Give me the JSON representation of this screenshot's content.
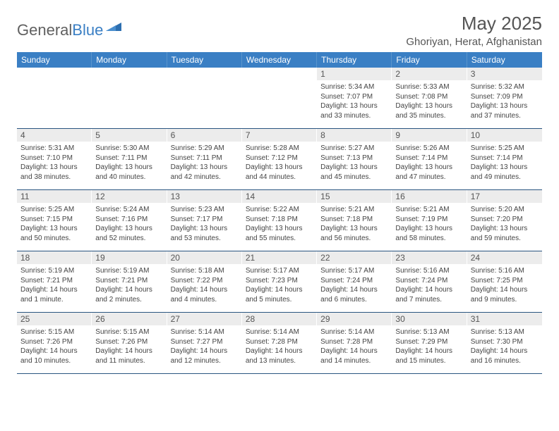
{
  "logo": {
    "text1": "General",
    "text2": "Blue"
  },
  "title": "May 2025",
  "location": "Ghoriyan, Herat, Afghanistan",
  "weekdays": [
    "Sunday",
    "Monday",
    "Tuesday",
    "Wednesday",
    "Thursday",
    "Friday",
    "Saturday"
  ],
  "colors": {
    "header_bg": "#3a7fc4",
    "header_text": "#ffffff",
    "daynum_bg": "#ececec",
    "row_border": "#2a5580",
    "text": "#444444",
    "title_text": "#555555"
  },
  "weeks": [
    [
      {
        "n": "",
        "sr": "",
        "ss": "",
        "dl": ""
      },
      {
        "n": "",
        "sr": "",
        "ss": "",
        "dl": ""
      },
      {
        "n": "",
        "sr": "",
        "ss": "",
        "dl": ""
      },
      {
        "n": "",
        "sr": "",
        "ss": "",
        "dl": ""
      },
      {
        "n": "1",
        "sr": "Sunrise: 5:34 AM",
        "ss": "Sunset: 7:07 PM",
        "dl": "Daylight: 13 hours and 33 minutes."
      },
      {
        "n": "2",
        "sr": "Sunrise: 5:33 AM",
        "ss": "Sunset: 7:08 PM",
        "dl": "Daylight: 13 hours and 35 minutes."
      },
      {
        "n": "3",
        "sr": "Sunrise: 5:32 AM",
        "ss": "Sunset: 7:09 PM",
        "dl": "Daylight: 13 hours and 37 minutes."
      }
    ],
    [
      {
        "n": "4",
        "sr": "Sunrise: 5:31 AM",
        "ss": "Sunset: 7:10 PM",
        "dl": "Daylight: 13 hours and 38 minutes."
      },
      {
        "n": "5",
        "sr": "Sunrise: 5:30 AM",
        "ss": "Sunset: 7:11 PM",
        "dl": "Daylight: 13 hours and 40 minutes."
      },
      {
        "n": "6",
        "sr": "Sunrise: 5:29 AM",
        "ss": "Sunset: 7:11 PM",
        "dl": "Daylight: 13 hours and 42 minutes."
      },
      {
        "n": "7",
        "sr": "Sunrise: 5:28 AM",
        "ss": "Sunset: 7:12 PM",
        "dl": "Daylight: 13 hours and 44 minutes."
      },
      {
        "n": "8",
        "sr": "Sunrise: 5:27 AM",
        "ss": "Sunset: 7:13 PM",
        "dl": "Daylight: 13 hours and 45 minutes."
      },
      {
        "n": "9",
        "sr": "Sunrise: 5:26 AM",
        "ss": "Sunset: 7:14 PM",
        "dl": "Daylight: 13 hours and 47 minutes."
      },
      {
        "n": "10",
        "sr": "Sunrise: 5:25 AM",
        "ss": "Sunset: 7:14 PM",
        "dl": "Daylight: 13 hours and 49 minutes."
      }
    ],
    [
      {
        "n": "11",
        "sr": "Sunrise: 5:25 AM",
        "ss": "Sunset: 7:15 PM",
        "dl": "Daylight: 13 hours and 50 minutes."
      },
      {
        "n": "12",
        "sr": "Sunrise: 5:24 AM",
        "ss": "Sunset: 7:16 PM",
        "dl": "Daylight: 13 hours and 52 minutes."
      },
      {
        "n": "13",
        "sr": "Sunrise: 5:23 AM",
        "ss": "Sunset: 7:17 PM",
        "dl": "Daylight: 13 hours and 53 minutes."
      },
      {
        "n": "14",
        "sr": "Sunrise: 5:22 AM",
        "ss": "Sunset: 7:18 PM",
        "dl": "Daylight: 13 hours and 55 minutes."
      },
      {
        "n": "15",
        "sr": "Sunrise: 5:21 AM",
        "ss": "Sunset: 7:18 PM",
        "dl": "Daylight: 13 hours and 56 minutes."
      },
      {
        "n": "16",
        "sr": "Sunrise: 5:21 AM",
        "ss": "Sunset: 7:19 PM",
        "dl": "Daylight: 13 hours and 58 minutes."
      },
      {
        "n": "17",
        "sr": "Sunrise: 5:20 AM",
        "ss": "Sunset: 7:20 PM",
        "dl": "Daylight: 13 hours and 59 minutes."
      }
    ],
    [
      {
        "n": "18",
        "sr": "Sunrise: 5:19 AM",
        "ss": "Sunset: 7:21 PM",
        "dl": "Daylight: 14 hours and 1 minute."
      },
      {
        "n": "19",
        "sr": "Sunrise: 5:19 AM",
        "ss": "Sunset: 7:21 PM",
        "dl": "Daylight: 14 hours and 2 minutes."
      },
      {
        "n": "20",
        "sr": "Sunrise: 5:18 AM",
        "ss": "Sunset: 7:22 PM",
        "dl": "Daylight: 14 hours and 4 minutes."
      },
      {
        "n": "21",
        "sr": "Sunrise: 5:17 AM",
        "ss": "Sunset: 7:23 PM",
        "dl": "Daylight: 14 hours and 5 minutes."
      },
      {
        "n": "22",
        "sr": "Sunrise: 5:17 AM",
        "ss": "Sunset: 7:24 PM",
        "dl": "Daylight: 14 hours and 6 minutes."
      },
      {
        "n": "23",
        "sr": "Sunrise: 5:16 AM",
        "ss": "Sunset: 7:24 PM",
        "dl": "Daylight: 14 hours and 7 minutes."
      },
      {
        "n": "24",
        "sr": "Sunrise: 5:16 AM",
        "ss": "Sunset: 7:25 PM",
        "dl": "Daylight: 14 hours and 9 minutes."
      }
    ],
    [
      {
        "n": "25",
        "sr": "Sunrise: 5:15 AM",
        "ss": "Sunset: 7:26 PM",
        "dl": "Daylight: 14 hours and 10 minutes."
      },
      {
        "n": "26",
        "sr": "Sunrise: 5:15 AM",
        "ss": "Sunset: 7:26 PM",
        "dl": "Daylight: 14 hours and 11 minutes."
      },
      {
        "n": "27",
        "sr": "Sunrise: 5:14 AM",
        "ss": "Sunset: 7:27 PM",
        "dl": "Daylight: 14 hours and 12 minutes."
      },
      {
        "n": "28",
        "sr": "Sunrise: 5:14 AM",
        "ss": "Sunset: 7:28 PM",
        "dl": "Daylight: 14 hours and 13 minutes."
      },
      {
        "n": "29",
        "sr": "Sunrise: 5:14 AM",
        "ss": "Sunset: 7:28 PM",
        "dl": "Daylight: 14 hours and 14 minutes."
      },
      {
        "n": "30",
        "sr": "Sunrise: 5:13 AM",
        "ss": "Sunset: 7:29 PM",
        "dl": "Daylight: 14 hours and 15 minutes."
      },
      {
        "n": "31",
        "sr": "Sunrise: 5:13 AM",
        "ss": "Sunset: 7:30 PM",
        "dl": "Daylight: 14 hours and 16 minutes."
      }
    ]
  ]
}
